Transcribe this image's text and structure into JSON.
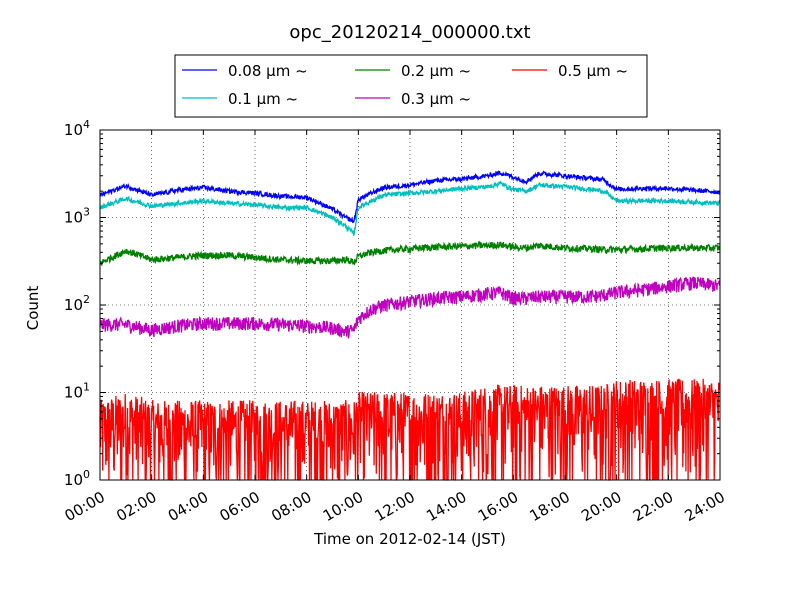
{
  "chart_data": {
    "type": "line",
    "title": "opc_20120214_000000.txt",
    "xlabel": "Time on 2012-02-14 (JST)",
    "ylabel": "Count",
    "yscale": "log",
    "ylim": [
      1,
      10000
    ],
    "xlim": [
      "00:00",
      "24:00"
    ],
    "xticks": [
      "00:00",
      "02:00",
      "04:00",
      "06:00",
      "08:00",
      "10:00",
      "12:00",
      "14:00",
      "16:00",
      "18:00",
      "20:00",
      "22:00",
      "24:00"
    ],
    "yticks": [
      {
        "base": "10",
        "exp": "0",
        "value": 1
      },
      {
        "base": "10",
        "exp": "1",
        "value": 10
      },
      {
        "base": "10",
        "exp": "2",
        "value": 100
      },
      {
        "base": "10",
        "exp": "3",
        "value": 1000
      },
      {
        "base": "10",
        "exp": "4",
        "value": 10000
      }
    ],
    "grid": true,
    "legend_position": "top-center-outside",
    "x": [
      "00:00",
      "01:00",
      "02:00",
      "03:00",
      "04:00",
      "05:00",
      "06:00",
      "07:00",
      "08:00",
      "09:00",
      "09:30",
      "09:50",
      "10:00",
      "10:30",
      "11:00",
      "12:00",
      "13:00",
      "14:00",
      "15:00",
      "15:30",
      "16:00",
      "16:30",
      "17:00",
      "18:00",
      "19:00",
      "19:30",
      "20:00",
      "21:00",
      "22:00",
      "23:00",
      "24:00"
    ],
    "series": [
      {
        "name": "0.08 μm ~",
        "color": "#0000ff",
        "noise": 0.02,
        "values": [
          1800,
          2300,
          1800,
          2050,
          2200,
          2000,
          1900,
          1750,
          1700,
          1250,
          1000,
          900,
          1600,
          1900,
          2200,
          2350,
          2650,
          2750,
          3000,
          3250,
          2900,
          2600,
          3200,
          3000,
          2800,
          2700,
          2100,
          2150,
          2150,
          2050,
          1950
        ]
      },
      {
        "name": "0.1 μm ~",
        "color": "#00bfbf",
        "noise": 0.02,
        "values": [
          1300,
          1650,
          1350,
          1450,
          1550,
          1450,
          1400,
          1300,
          1300,
          1000,
          800,
          650,
          1300,
          1550,
          1800,
          1900,
          2000,
          2150,
          2250,
          2450,
          2100,
          2000,
          2350,
          2250,
          2100,
          2000,
          1550,
          1550,
          1550,
          1500,
          1450
        ]
      },
      {
        "name": "0.2 μm ~",
        "color": "#008000",
        "noise": 0.03,
        "values": [
          300,
          420,
          330,
          350,
          370,
          370,
          350,
          330,
          320,
          320,
          330,
          310,
          360,
          400,
          420,
          440,
          460,
          470,
          480,
          490,
          460,
          450,
          480,
          450,
          440,
          430,
          430,
          440,
          450,
          450,
          450
        ]
      },
      {
        "name": "0.3 μm ~",
        "color": "#bf00bf",
        "noise": 0.06,
        "values": [
          60,
          60,
          52,
          58,
          62,
          62,
          62,
          60,
          58,
          55,
          50,
          52,
          70,
          90,
          100,
          110,
          120,
          125,
          135,
          140,
          120,
          120,
          125,
          125,
          125,
          130,
          140,
          150,
          165,
          180,
          165
        ]
      },
      {
        "name": "0.5 μm ~",
        "color": "#ff0000",
        "noise": 0.35,
        "values": [
          4,
          5,
          4,
          4,
          4,
          4,
          4,
          4,
          4,
          4,
          4,
          4,
          5,
          5,
          5,
          5,
          5,
          5,
          6,
          6,
          6,
          6,
          6,
          6,
          6,
          6,
          7,
          7,
          7,
          7,
          7
        ]
      }
    ]
  }
}
